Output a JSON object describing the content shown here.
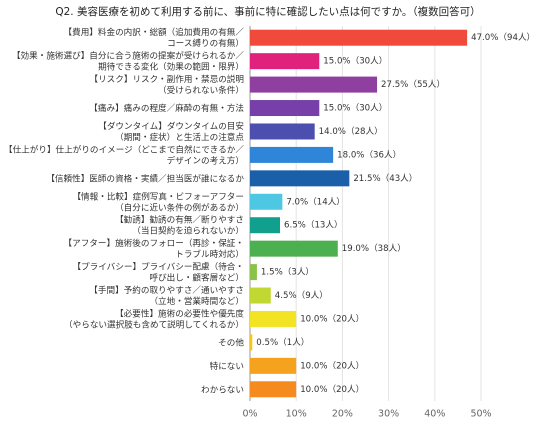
{
  "chart_data": {
    "type": "hbar",
    "title": "Q2. 美容医療を初めて利用する前に、事前に特に確認したい点は何ですか。（複数回答可）",
    "categories": [
      [
        "【費用】料金の内訳・総額（追加費用の有無／",
        "コース縛りの有無）"
      ],
      [
        "【効果・施術選び】自分に合う施術の提案が受けられるか／",
        "期待できる変化（効果の範囲・限界）"
      ],
      [
        "【リスク】リスク・副作用・禁忌の説明",
        "（受けられない条件）"
      ],
      [
        "【痛み】痛みの程度／麻酔の有無・方法"
      ],
      [
        "【ダウンタイム】ダウンタイムの目安",
        "（期間・症状）と生活上の注意点"
      ],
      [
        "【仕上がり】仕上がりのイメージ（どこまで自然にできるか／",
        "デザインの考え方）"
      ],
      [
        "【信頼性】医師の資格・実績／担当医が誰になるか"
      ],
      [
        "【情報・比較】症例写真・ビフォーアフター",
        "（自分に近い条件の例があるか）"
      ],
      [
        "【勧誘】勧誘の有無／断りやすさ",
        "（当日契約を迫られないか）"
      ],
      [
        "【アフター】施術後のフォロー（再診・保証・",
        "トラブル時対応）"
      ],
      [
        "【プライバシー】プライバシー配慮（待合・",
        "呼び出し・顧客層など）"
      ],
      [
        "【手間】予約の取りやすさ／通いやすさ",
        "（立地・営業時間など）"
      ],
      [
        "【必要性】施術の必要性や優先度",
        "（やらない選択肢も含めて説明してくれるか）"
      ],
      [
        "その他"
      ],
      [
        "特にない"
      ],
      [
        "わからない"
      ]
    ],
    "values": [
      47.0,
      15.0,
      27.5,
      15.0,
      14.0,
      18.0,
      21.5,
      7.0,
      6.5,
      19.0,
      1.5,
      4.5,
      10.0,
      0.5,
      10.0,
      10.0
    ],
    "value_labels": [
      "47.0%（94人）",
      "15.0%（30人）",
      "27.5%（55人）",
      "15.0%（30人）",
      "14.0%（28人）",
      "18.0%（36人）",
      "21.5%（43人）",
      "7.0%（14人）",
      "6.5%（13人）",
      "19.0%（38人）",
      "1.5%（3人）",
      "4.5%（9人）",
      "10.0%（20人）",
      "0.5%（1人）",
      "10.0%（20人）",
      "10.0%（20人）"
    ],
    "colors": [
      "#f04a3a",
      "#e0227c",
      "#8e3fa0",
      "#7740a8",
      "#4c4fae",
      "#2f86d8",
      "#1a5fa8",
      "#4ec8e2",
      "#12a08e",
      "#4caf50",
      "#8bc34a",
      "#c2d832",
      "#f2e324",
      "#f5c518",
      "#f5a21e",
      "#f58a1e"
    ],
    "xlim": [
      0,
      50
    ],
    "xticks": [
      {
        "value": 0,
        "label": "0%"
      },
      {
        "value": 10,
        "label": "10%"
      },
      {
        "value": 20,
        "label": "20%"
      },
      {
        "value": 30,
        "label": "30%"
      },
      {
        "value": 40,
        "label": "40%"
      },
      {
        "value": 50,
        "label": "50%"
      }
    ],
    "grid": true
  }
}
